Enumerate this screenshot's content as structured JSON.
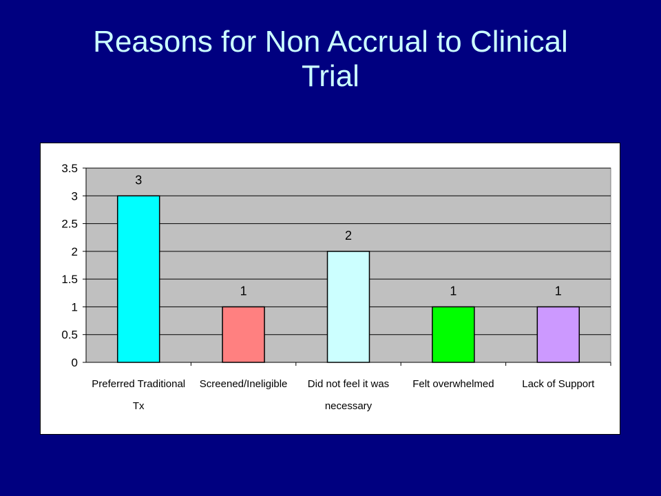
{
  "slide": {
    "title_line1": "Reasons for Non Accrual to  Clinical",
    "title_line2": "Trial"
  },
  "colors": {
    "slide_background": "#000080",
    "title_text": "#ccffff",
    "plot_area": "#c0c0c0",
    "chart_background": "#ffffff"
  },
  "chart_data": {
    "type": "bar",
    "title": "",
    "xlabel": "",
    "ylabel": "",
    "ylim": [
      0,
      3.5
    ],
    "yticks": [
      0,
      0.5,
      1,
      1.5,
      2,
      2.5,
      3,
      3.5
    ],
    "ytick_labels": [
      "0",
      "0.5",
      "1",
      "1.5",
      "2",
      "2.5",
      "3",
      "3.5"
    ],
    "grid": true,
    "legend": "none",
    "categories": [
      [
        "Preferred Traditional",
        "Tx"
      ],
      [
        "Screened/Ineligible"
      ],
      [
        "Did not feel it was",
        "necessary"
      ],
      [
        "Felt overwhelmed"
      ],
      [
        "Lack of Support"
      ]
    ],
    "values": [
      3,
      1,
      2,
      1,
      1
    ],
    "data_labels": [
      "3",
      "1",
      "2",
      "1",
      "1"
    ],
    "bar_colors": [
      "#00ffff",
      "#ff8080",
      "#ccffff",
      "#00ff00",
      "#cc99ff"
    ]
  }
}
